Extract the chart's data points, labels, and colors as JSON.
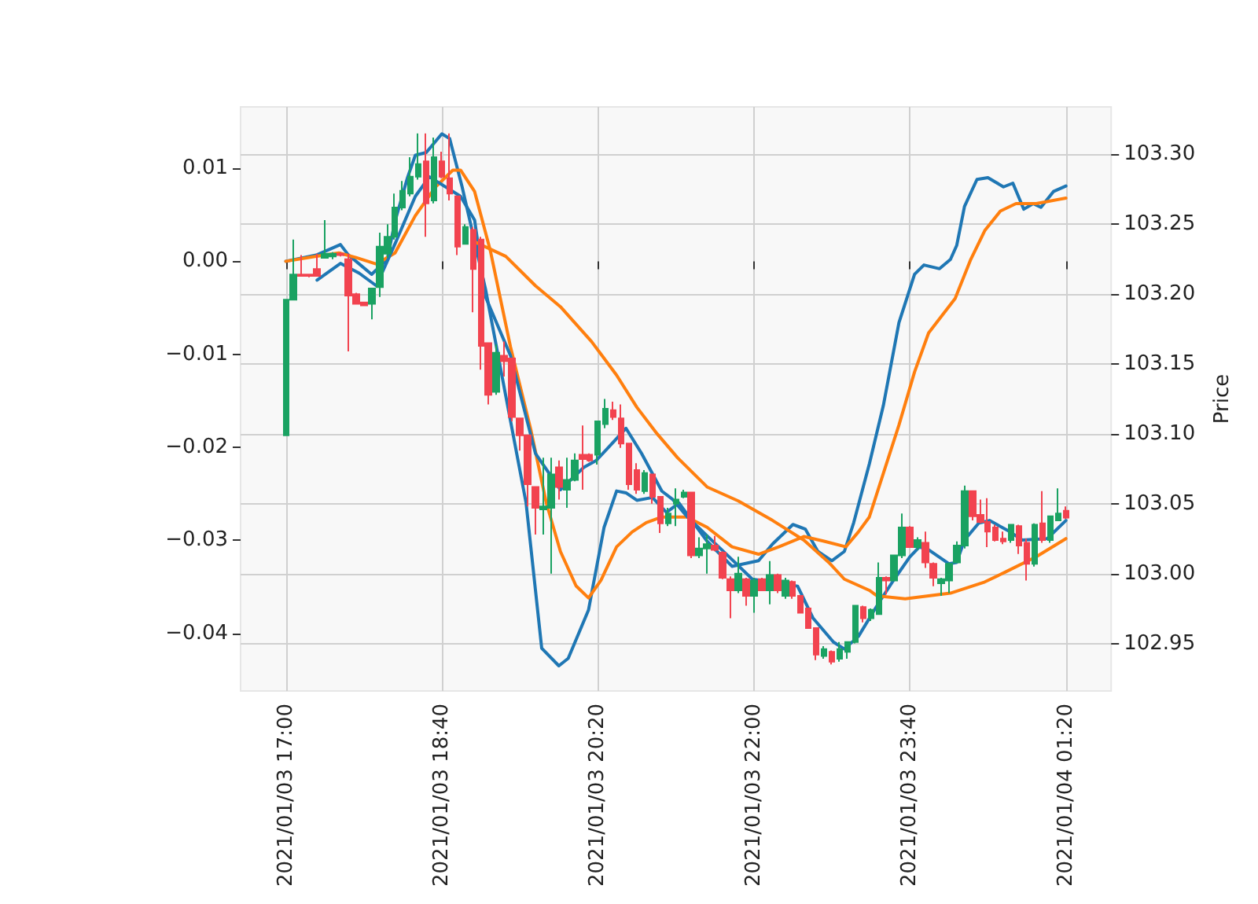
{
  "chart_data": {
    "type": "candlestick",
    "y2label": "Price",
    "grid": true,
    "marker": "none",
    "line_style": "solid",
    "xlim": [
      "2021-01-03T16:31",
      "2021-01-04T01:49"
    ],
    "xticks": [
      {
        "value": "2021-01-03T17:00",
        "label": "2021/01/03 17:00"
      },
      {
        "value": "2021-01-03T18:40",
        "label": "2021/01/03 18:40"
      },
      {
        "value": "2021-01-03T20:20",
        "label": "2021/01/03 20:20"
      },
      {
        "value": "2021-01-03T22:00",
        "label": "2021/01/03 22:00"
      },
      {
        "value": "2021-01-03T23:40",
        "label": "2021/01/03 23:40"
      },
      {
        "value": "2021-01-04T01:20",
        "label": "2021/01/04 01:20"
      }
    ],
    "ylim": [
      -0.0462,
      0.0166
    ],
    "yticks": [
      {
        "value": -0.04,
        "label": "−0.04"
      },
      {
        "value": -0.03,
        "label": "−0.03"
      },
      {
        "value": -0.02,
        "label": "−0.02"
      },
      {
        "value": -0.01,
        "label": "−0.01"
      },
      {
        "value": 0,
        "label": "0.00"
      },
      0.01
    ],
    "y2lim": [
      102.916,
      103.334
    ],
    "y2ticks": [
      102.95,
      {
        "value": 103.0,
        "label": "103.00"
      },
      103.05,
      {
        "value": 103.1,
        "label": "103.10"
      },
      103.15,
      {
        "value": 103.2,
        "label": "103.20"
      },
      103.25,
      {
        "value": 103.3,
        "label": "103.30"
      }
    ],
    "series": [
      {
        "axis": "y2",
        "colors": [
          "#1aa262",
          "#1aa262",
          "#f2434f",
          "#f2434f",
          "#f2434f",
          "#1aa262",
          "#1aa262",
          "#f2434f",
          "#f2434f",
          "#f2434f",
          "#f2434f",
          "#1aa262",
          "#1aa262",
          "#1aa262",
          "#1aa262",
          "#1aa262",
          "#1aa262",
          "#1aa262",
          "#f2434f",
          "#1aa262",
          "#f2434f",
          "#f2434f",
          "#f2434f",
          "#1aa262",
          "#f2434f",
          "#f2434f",
          "#f2434f",
          "#1aa262",
          "#f2434f",
          "#f2434f",
          "#f2434f",
          "#f2434f",
          "#f2434f",
          "#1aa262",
          "#1aa262",
          "#f2434f",
          "#1aa262",
          "#1aa262",
          "#f2434f",
          "#f2434f",
          "#1aa262",
          "#1aa262",
          "#f2434f",
          "#f2434f",
          "#f2434f",
          "#f2434f",
          "#1aa262",
          "#f2434f",
          "#f2434f",
          "#1aa262",
          "#1aa262",
          "#1aa262",
          "#f2434f",
          "#1aa262",
          "#1aa262",
          "#f2434f",
          "#f2434f",
          "#f2434f",
          "#1aa262",
          "#f2434f",
          "#1aa262",
          "#f2434f",
          "#1aa262",
          "#f2434f",
          "#1aa262",
          "#f2434f",
          "#f2434f",
          "#f2434f",
          "#f2434f",
          "#1aa262",
          "#f2434f",
          "#1aa262",
          "#1aa262",
          "#1aa262",
          "#f2434f",
          "#1aa262",
          "#1aa262",
          "#f2434f",
          "#1aa262",
          "#1aa262",
          "#f2434f",
          "#1aa262",
          "#f2434f",
          "#f2434f",
          "#1aa262",
          "#1aa262",
          "#1aa262",
          "#1aa262",
          "#f2434f",
          "#f2434f",
          "#f2434f",
          "#f2434f",
          "#f2434f",
          "#1aa262",
          "#f2434f",
          "#f2434f",
          "#1aa262",
          "#f2434f",
          "#1aa262",
          "#1aa262",
          "#f2434f"
        ],
        "x": [
          "2021-01-03T17:00",
          "2021-01-03T17:05",
          "2021-01-03T17:10",
          "2021-01-03T17:15",
          "2021-01-03T17:20",
          "2021-01-03T17:25",
          "2021-01-03T17:30",
          "2021-01-03T17:35",
          "2021-01-03T17:40",
          "2021-01-03T17:45",
          "2021-01-03T17:50",
          "2021-01-03T17:55",
          "2021-01-03T18:00",
          "2021-01-03T18:05",
          "2021-01-03T18:10",
          "2021-01-03T18:15",
          "2021-01-03T18:20",
          "2021-01-03T18:25",
          "2021-01-03T18:30",
          "2021-01-03T18:35",
          "2021-01-03T18:40",
          "2021-01-03T18:45",
          "2021-01-03T18:50",
          "2021-01-03T18:55",
          "2021-01-03T19:00",
          "2021-01-03T19:05",
          "2021-01-03T19:10",
          "2021-01-03T19:15",
          "2021-01-03T19:20",
          "2021-01-03T19:25",
          "2021-01-03T19:30",
          "2021-01-03T19:35",
          "2021-01-03T19:40",
          "2021-01-03T19:45",
          "2021-01-03T19:50",
          "2021-01-03T19:55",
          "2021-01-03T20:00",
          "2021-01-03T20:05",
          "2021-01-03T20:10",
          "2021-01-03T20:15",
          "2021-01-03T20:20",
          "2021-01-03T20:25",
          "2021-01-03T20:30",
          "2021-01-03T20:35",
          "2021-01-03T20:40",
          "2021-01-03T20:45",
          "2021-01-03T20:50",
          "2021-01-03T20:55",
          "2021-01-03T21:00",
          "2021-01-03T21:05",
          "2021-01-03T21:10",
          "2021-01-03T21:15",
          "2021-01-03T21:20",
          "2021-01-03T21:25",
          "2021-01-03T21:30",
          "2021-01-03T21:35",
          "2021-01-03T21:40",
          "2021-01-03T21:45",
          "2021-01-03T21:50",
          "2021-01-03T21:55",
          "2021-01-03T22:00",
          "2021-01-03T22:05",
          "2021-01-03T22:10",
          "2021-01-03T22:15",
          "2021-01-03T22:20",
          "2021-01-03T22:25",
          "2021-01-03T22:30",
          "2021-01-03T22:35",
          "2021-01-03T22:40",
          "2021-01-03T22:45",
          "2021-01-03T22:50",
          "2021-01-03T22:55",
          "2021-01-03T23:00",
          "2021-01-03T23:05",
          "2021-01-03T23:10",
          "2021-01-03T23:15",
          "2021-01-03T23:20",
          "2021-01-03T23:25",
          "2021-01-03T23:30",
          "2021-01-03T23:35",
          "2021-01-03T23:40",
          "2021-01-03T23:45",
          "2021-01-03T23:50",
          "2021-01-03T23:55",
          "2021-01-04T00:00",
          "2021-01-04T00:05",
          "2021-01-04T00:10",
          "2021-01-04T00:15",
          "2021-01-04T00:20",
          "2021-01-04T00:25",
          "2021-01-04T00:30",
          "2021-01-04T00:35",
          "2021-01-04T00:40",
          "2021-01-04T00:45",
          "2021-01-04T00:50",
          "2021-01-04T00:55",
          "2021-01-04T01:00",
          "2021-01-04T01:05",
          "2021-01-04T01:10",
          "2021-01-04T01:15",
          "2021-01-04T01:20"
        ],
        "ohlc": [
          [
            103.099,
            103.196,
            103.099,
            103.196
          ],
          [
            103.196,
            103.239,
            103.196,
            103.214
          ],
          [
            103.214,
            103.228,
            103.213,
            103.213
          ],
          [
            103.214,
            103.214,
            103.212,
            103.213
          ],
          [
            103.218,
            103.229,
            103.213,
            103.213
          ],
          [
            103.226,
            103.253,
            103.226,
            103.229
          ],
          [
            103.227,
            103.23,
            103.225,
            103.229
          ],
          [
            103.229,
            103.23,
            103.227,
            103.228
          ],
          [
            103.225,
            103.229,
            103.159,
            103.199
          ],
          [
            103.2,
            103.201,
            103.193,
            103.193
          ],
          [
            103.194,
            103.194,
            103.192,
            103.192
          ],
          [
            103.193,
            103.204,
            103.182,
            103.204
          ],
          [
            103.205,
            103.244,
            103.198,
            103.234
          ],
          [
            103.229,
            103.25,
            103.226,
            103.241
          ],
          [
            103.241,
            103.272,
            103.239,
            103.262
          ],
          [
            103.262,
            103.281,
            103.26,
            103.274
          ],
          [
            103.272,
            103.298,
            103.27,
            103.284
          ],
          [
            103.284,
            103.315,
            103.282,
            103.293
          ],
          [
            103.295,
            103.315,
            103.241,
            103.265
          ],
          [
            103.267,
            103.312,
            103.265,
            103.298
          ],
          [
            103.295,
            103.302,
            103.283,
            103.284
          ],
          [
            103.283,
            103.315,
            103.267,
            103.272
          ],
          [
            103.27,
            103.27,
            103.228,
            103.234
          ],
          [
            103.236,
            103.25,
            103.236,
            103.248
          ],
          [
            103.246,
            103.248,
            103.187,
            103.218
          ],
          [
            103.239,
            103.241,
            103.146,
            103.163
          ],
          [
            103.165,
            103.165,
            103.121,
            103.128
          ],
          [
            103.13,
            103.164,
            103.128,
            103.158
          ],
          [
            103.156,
            103.166,
            103.141,
            103.152
          ],
          [
            103.154,
            103.154,
            103.109,
            103.112
          ],
          [
            103.111,
            103.111,
            103.088,
            103.099
          ],
          [
            103.099,
            103.099,
            103.048,
            103.064
          ],
          [
            103.062,
            103.062,
            103.028,
            103.047
          ],
          [
            103.046,
            103.083,
            103.028,
            103.048
          ],
          [
            103.047,
            103.083,
            103.0,
            103.071
          ],
          [
            103.076,
            103.081,
            103.053,
            103.062
          ],
          [
            103.06,
            103.083,
            103.047,
            103.067
          ],
          [
            103.067,
            103.086,
            103.066,
            103.081
          ],
          [
            103.085,
            103.106,
            103.06,
            103.082
          ],
          [
            103.085,
            103.086,
            103.08,
            103.081
          ],
          [
            103.085,
            103.109,
            103.078,
            103.109
          ],
          [
            103.107,
            103.125,
            103.104,
            103.118
          ],
          [
            103.117,
            103.123,
            103.11,
            103.112
          ],
          [
            103.111,
            103.121,
            103.09,
            103.093
          ],
          [
            103.093,
            103.093,
            103.06,
            103.064
          ],
          [
            103.074,
            103.079,
            103.057,
            103.06
          ],
          [
            103.059,
            103.074,
            103.057,
            103.072
          ],
          [
            103.071,
            103.071,
            103.05,
            103.055
          ],
          [
            103.055,
            103.055,
            103.029,
            103.036
          ],
          [
            103.036,
            103.047,
            103.034,
            103.043
          ],
          [
            103.05,
            103.061,
            103.034,
            103.053
          ],
          [
            103.055,
            103.06,
            103.054,
            103.058
          ],
          [
            103.058,
            103.058,
            103.011,
            103.013
          ],
          [
            103.013,
            103.026,
            103.011,
            103.018
          ],
          [
            103.018,
            103.028,
            103.0,
            103.021
          ],
          [
            103.02,
            103.027,
            103.016,
            103.017
          ],
          [
            103.015,
            103.016,
            102.996,
            102.997
          ],
          [
            102.996,
            102.998,
            102.968,
            102.988
          ],
          [
            102.988,
            103.012,
            102.986,
            103.0
          ],
          [
            102.996,
            102.997,
            102.977,
            102.984
          ],
          [
            102.984,
            102.997,
            102.972,
            102.995
          ],
          [
            102.996,
            102.997,
            102.988,
            102.988
          ],
          [
            102.988,
            103.009,
            102.978,
            102.999
          ],
          [
            102.999,
            103.0,
            102.986,
            102.988
          ],
          [
            102.984,
            102.997,
            102.982,
            102.995
          ],
          [
            102.994,
            102.995,
            102.982,
            102.984
          ],
          [
            102.984,
            102.984,
            102.972,
            102.972
          ],
          [
            102.975,
            102.975,
            102.961,
            102.961
          ],
          [
            102.961,
            102.961,
            102.938,
            102.942
          ],
          [
            102.941,
            102.948,
            102.939,
            102.946
          ],
          [
            102.944,
            102.945,
            102.935,
            102.937
          ],
          [
            102.939,
            102.951,
            102.937,
            102.946
          ],
          [
            102.944,
            102.951,
            102.939,
            102.951
          ],
          [
            102.951,
            102.977,
            102.95,
            102.977
          ],
          [
            102.976,
            102.977,
            102.965,
            102.968
          ],
          [
            102.968,
            102.975,
            102.966,
            102.974
          ],
          [
            102.971,
            103.008,
            102.971,
            102.997
          ],
          [
            102.997,
            102.998,
            102.985,
            102.995
          ],
          [
            102.995,
            103.013,
            102.995,
            103.013
          ],
          [
            103.013,
            103.043,
            103.011,
            103.033
          ],
          [
            103.033,
            103.034,
            103.019,
            103.019
          ],
          [
            103.019,
            103.026,
            103.017,
            103.024
          ],
          [
            103.022,
            103.03,
            103.004,
            103.008
          ],
          [
            103.007,
            103.008,
            102.991,
            102.997
          ],
          [
            102.993,
            102.997,
            102.984,
            102.996
          ],
          [
            102.995,
            103.008,
            102.986,
            103.007
          ],
          [
            103.008,
            103.023,
            103.008,
            103.02
          ],
          [
            103.02,
            103.063,
            103.018,
            103.059
          ],
          [
            103.059,
            103.059,
            103.038,
            103.041
          ],
          [
            103.042,
            103.053,
            103.036,
            103.037
          ],
          [
            103.037,
            103.054,
            103.019,
            103.03
          ],
          [
            103.033,
            103.035,
            103.023,
            103.024
          ],
          [
            103.025,
            103.03,
            103.021,
            103.023
          ],
          [
            103.024,
            103.035,
            103.022,
            103.035
          ],
          [
            103.034,
            103.035,
            103.014,
            103.02
          ],
          [
            103.022,
            103.025,
            102.995,
            103.007
          ],
          [
            103.007,
            103.036,
            103.005,
            103.035
          ],
          [
            103.036,
            103.059,
            103.022,
            103.024
          ],
          [
            103.024,
            103.041,
            103.022,
            103.041
          ],
          [
            103.038,
            103.061,
            103.038,
            103.043
          ],
          [
            103.045,
            103.048,
            103.039,
            103.04
          ]
        ]
      },
      {
        "type": "line",
        "axis": "y",
        "color": "#1f77b4",
        "x": [
          "2021-01-03T17:00",
          "2021-01-03T17:20",
          "2021-01-03T17:35",
          "2021-01-03T17:40",
          "2021-01-03T17:55",
          "2021-01-03T18:05",
          "2021-01-03T18:10",
          "2021-01-03T18:18",
          "2021-01-03T18:23",
          "2021-01-03T18:30",
          "2021-01-03T18:40",
          "2021-01-03T18:45",
          "2021-01-03T18:53",
          "2021-01-03T19:08",
          "2021-01-03T19:24",
          "2021-01-03T19:34",
          "2021-01-03T19:44",
          "2021-01-03T19:55",
          "2021-01-03T20:01",
          "2021-01-03T20:14",
          "2021-01-03T20:24",
          "2021-01-03T20:32",
          "2021-01-03T20:38",
          "2021-01-03T20:45",
          "2021-01-03T20:55",
          "2021-01-03T21:04",
          "2021-01-03T21:12",
          "2021-01-03T21:30",
          "2021-01-03T21:46",
          "2021-01-03T22:03",
          "2021-01-03T22:12",
          "2021-01-03T22:25",
          "2021-01-03T22:33",
          "2021-01-03T22:41",
          "2021-01-03T22:50",
          "2021-01-03T22:58",
          "2021-01-03T23:04",
          "2021-01-03T23:14",
          "2021-01-03T23:23",
          "2021-01-03T23:33",
          "2021-01-03T23:43",
          "2021-01-03T23:49",
          "2021-01-03T23:59",
          "2021-01-04T00:06",
          "2021-01-04T00:10",
          "2021-01-04T00:15",
          "2021-01-04T00:23",
          "2021-01-04T00:30",
          "2021-01-04T00:40",
          "2021-01-04T00:46",
          "2021-01-04T00:53",
          "2021-01-04T00:59",
          "2021-01-04T01:04",
          "2021-01-04T01:12",
          "2021-01-04T01:20"
        ],
        "values": [
          0.0,
          0.0007,
          0.0018,
          0.0007,
          -0.0014,
          0.0002,
          0.0043,
          0.009,
          0.0114,
          0.0117,
          0.0137,
          0.0132,
          0.008,
          -0.003,
          null,
          -0.026,
          -0.0416,
          -0.0435,
          -0.0427,
          -0.0375,
          -0.0286,
          -0.0247,
          -0.0249,
          -0.0257,
          -0.0254,
          -0.027,
          -0.026,
          -0.0301,
          -0.0328,
          -0.0322,
          -0.0304,
          -0.0283,
          -0.0288,
          -0.0312,
          -0.0322,
          -0.0312,
          -0.0281,
          -0.0218,
          -0.0155,
          -0.0066,
          -0.0014,
          -0.0004,
          -0.0008,
          0.0002,
          0.0017,
          0.0059,
          0.0088,
          0.009,
          0.008,
          0.0084,
          0.0056,
          0.0062,
          0.0058,
          0.0075,
          0.0081
        ]
      },
      {
        "type": "line",
        "axis": "y",
        "color": "#ff7f0e",
        "x": [
          "2021-01-03T17:00",
          "2021-01-03T17:18",
          "2021-01-03T17:34",
          "2021-01-03T17:45",
          "2021-01-03T17:58",
          "2021-01-03T18:10",
          "2021-01-03T18:23",
          "2021-01-03T18:36",
          "2021-01-03T18:47",
          "2021-01-03T18:52",
          "2021-01-03T19:01",
          "2021-01-03T19:11",
          "2021-01-03T19:24",
          "2021-01-03T19:37",
          "2021-01-03T19:47",
          "2021-01-03T19:56",
          "2021-01-03T20:06",
          "2021-01-03T20:14",
          "2021-01-03T20:22",
          "2021-01-03T20:32",
          "2021-01-03T20:42",
          "2021-01-03T20:51",
          "2021-01-03T21:01",
          "2021-01-03T21:17",
          "2021-01-03T21:30",
          "2021-01-03T21:46",
          "2021-01-03T22:03",
          "2021-01-03T22:16",
          "2021-01-03T22:32",
          "2021-01-03T22:45",
          "2021-01-03T22:59",
          "2021-01-03T23:07",
          "2021-01-03T23:14",
          "2021-01-03T23:23",
          "2021-01-03T23:33",
          "2021-01-03T23:43",
          "2021-01-03T23:52",
          "2021-01-04T00:09",
          "2021-01-04T00:19",
          "2021-01-04T00:28",
          "2021-01-04T00:38",
          "2021-01-04T00:48",
          "2021-01-04T01:01",
          "2021-01-04T01:20"
        ],
        "values": [
          0.0,
          0.0005,
          0.0009,
          0.0004,
          -0.0003,
          0.0009,
          0.0049,
          0.008,
          0.0098,
          0.0098,
          0.0075,
          0.0012,
          -0.0092,
          -0.0181,
          -0.026,
          -0.0312,
          -0.0349,
          -0.0362,
          -0.0343,
          -0.0307,
          -0.0291,
          -0.0281,
          -0.0275,
          -0.0275,
          -0.0286,
          -0.0307,
          -0.0315,
          -0.0307,
          -0.0296,
          -0.0301,
          -0.0307,
          -0.0291,
          -0.0275,
          -0.0228,
          -0.0176,
          -0.0119,
          -0.0077,
          -0.004,
          0.0002,
          0.0033,
          0.0054,
          0.0062,
          0.0062,
          0.0068
        ]
      },
      {
        "type": "line",
        "axis": "y2",
        "color": "#1f77b4",
        "x": [
          "2021-01-03T17:20",
          "2021-01-03T17:35",
          "2021-01-03T17:47",
          "2021-01-03T17:58",
          "2021-01-03T18:10",
          "2021-01-03T18:23",
          "2021-01-03T18:32",
          "2021-01-03T18:52",
          "2021-01-03T19:01",
          "2021-01-03T19:08",
          "2021-01-03T19:24",
          "2021-01-03T19:40",
          "2021-01-03T19:56",
          "2021-01-03T20:11",
          "2021-01-03T20:19",
          "2021-01-03T20:29",
          "2021-01-03T20:38",
          "2021-01-03T20:48",
          "2021-01-03T21:01",
          "2021-01-03T21:08",
          "2021-01-03T21:17",
          "2021-01-03T21:30",
          "2021-01-03T21:46",
          "2021-01-03T21:59",
          "2021-01-03T22:12",
          "2021-01-03T22:28",
          "2021-01-03T22:38",
          "2021-01-03T22:51",
          "2021-01-03T22:58",
          "2021-01-03T23:07",
          "2021-01-03T23:20",
          "2021-01-03T23:30",
          "2021-01-03T23:40",
          "2021-01-03T23:46",
          "2021-01-03T23:52",
          "2021-01-04T00:05",
          "2021-01-04T00:10",
          "2021-01-04T00:15",
          "2021-01-04T00:24",
          "2021-01-04T00:31",
          "2021-01-04T00:44",
          "2021-01-04T00:52",
          "2021-01-04T01:08",
          "2021-01-04T01:20"
        ],
        "values": [
          103.21,
          103.222,
          103.215,
          103.206,
          103.236,
          103.27,
          103.284,
          103.27,
          103.253,
          103.198,
          103.156,
          103.086,
          103.06,
          103.076,
          103.081,
          103.093,
          103.104,
          103.086,
          103.059,
          103.053,
          103.041,
          103.027,
          103.01,
          102.996,
          null,
          102.991,
          102.968,
          102.951,
          102.946,
          102.955,
          102.979,
          102.996,
          103.012,
          103.019,
          103.017,
          103.007,
          103.008,
          103.024,
          103.036,
          103.038,
          103.03,
          103.024,
          103.025,
          103.038
        ]
      },
      {
        "type": "line",
        "axis": "y2",
        "color": "#ff7f0e",
        "x": [
          "2021-01-03T19:00",
          "2021-01-03T19:21",
          "2021-01-03T19:40",
          "2021-01-03T19:56",
          "2021-01-03T20:16",
          "2021-01-03T20:32",
          "2021-01-03T20:45",
          "2021-01-03T20:58",
          "2021-01-03T21:11",
          "2021-01-03T21:30",
          "2021-01-03T21:50",
          "2021-01-03T22:12",
          "2021-01-03T22:32",
          "2021-01-03T22:48",
          "2021-01-03T22:58",
          "2021-01-03T23:14",
          "2021-01-03T23:19",
          "2021-01-03T23:37",
          "2021-01-04T00:06",
          "2021-01-04T00:28",
          "2021-01-04T00:41",
          "2021-01-04T01:01",
          "2021-01-04T01:20"
        ],
        "values": [
          103.238,
          103.227,
          103.206,
          103.191,
          103.166,
          103.142,
          103.119,
          103.1,
          103.083,
          103.062,
          103.052,
          103.038,
          103.024,
          103.008,
          102.996,
          102.988,
          102.984,
          102.982,
          102.986,
          102.994,
          103.001,
          103.012,
          103.025
        ]
      }
    ]
  }
}
